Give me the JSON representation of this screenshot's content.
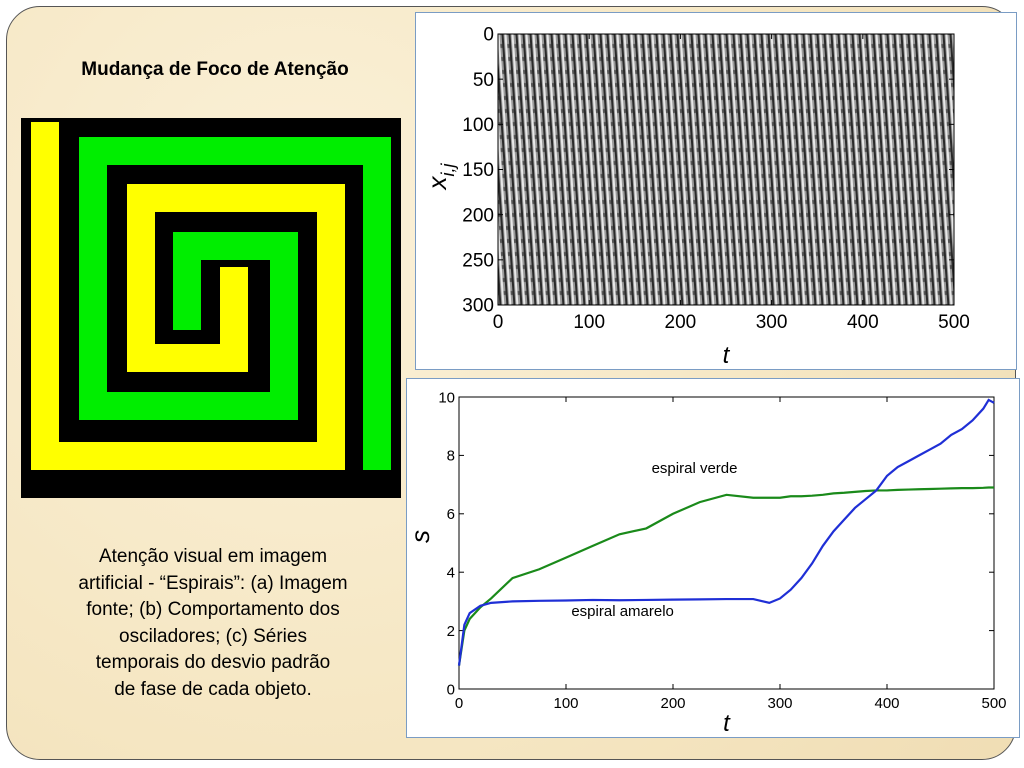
{
  "title": "Mudança de Foco de Atenção",
  "caption_lines": [
    "Atenção visual em imagem",
    "artificial - “Espirais”: (a) Imagem",
    "fonte; (b) Comportamento dos",
    "osciladores; (c) Séries",
    "temporais do desvio padrão",
    "de fase de cada objeto."
  ],
  "chart_data": [
    {
      "type": "heatmap",
      "xlabel": "t",
      "ylabel": "x",
      "ylabel_sub": "i,j",
      "xlim": [
        0,
        500
      ],
      "ylim": [
        300,
        0
      ],
      "xticks": [
        0,
        100,
        200,
        300,
        400,
        500
      ],
      "yticks": [
        0,
        50,
        100,
        150,
        200,
        250,
        300
      ]
    },
    {
      "type": "line",
      "xlabel": "t",
      "ylabel": "s",
      "xlim": [
        0,
        500
      ],
      "ylim": [
        0,
        10
      ],
      "xticks": [
        0,
        100,
        200,
        300,
        400,
        500
      ],
      "yticks": [
        0,
        2,
        4,
        6,
        8,
        10
      ],
      "x": [
        0,
        5,
        10,
        20,
        30,
        50,
        75,
        100,
        125,
        150,
        175,
        200,
        225,
        250,
        275,
        290,
        300,
        310,
        320,
        330,
        340,
        350,
        360,
        370,
        380,
        390,
        400,
        410,
        420,
        430,
        440,
        450,
        460,
        470,
        480,
        490,
        495,
        500
      ],
      "series": [
        {
          "name": "espiral verde",
          "color": "#1a8a1a",
          "values": [
            0.8,
            2.0,
            2.4,
            2.8,
            3.1,
            3.8,
            4.1,
            4.5,
            4.9,
            5.3,
            5.5,
            6.0,
            6.4,
            6.65,
            6.55,
            6.55,
            6.55,
            6.6,
            6.6,
            6.62,
            6.65,
            6.7,
            6.72,
            6.75,
            6.78,
            6.8,
            6.8,
            6.82,
            6.83,
            6.84,
            6.85,
            6.86,
            6.87,
            6.88,
            6.88,
            6.89,
            6.9,
            6.9
          ]
        },
        {
          "name": "espiral amarelo",
          "color": "#1f2fd6",
          "values": [
            0.8,
            2.2,
            2.6,
            2.85,
            2.95,
            3.0,
            3.02,
            3.03,
            3.05,
            3.04,
            3.05,
            3.06,
            3.07,
            3.08,
            3.08,
            2.95,
            3.1,
            3.4,
            3.8,
            4.3,
            4.9,
            5.4,
            5.8,
            6.2,
            6.5,
            6.8,
            7.3,
            7.6,
            7.8,
            8.0,
            8.2,
            8.4,
            8.7,
            8.9,
            9.2,
            9.6,
            9.9,
            9.8
          ]
        }
      ]
    }
  ]
}
